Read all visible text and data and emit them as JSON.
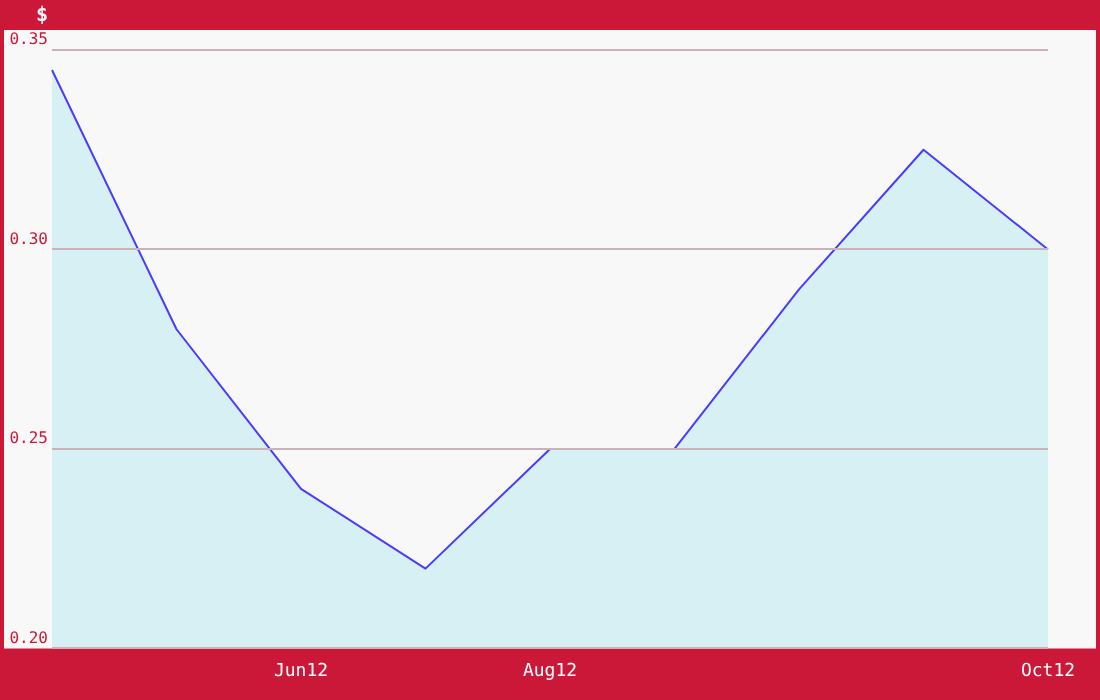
{
  "chart_data": {
    "type": "area",
    "ylabel": "$",
    "categories": [
      null,
      null,
      "Jun12",
      null,
      "Aug12",
      null,
      null,
      null,
      "Oct12"
    ],
    "series": [
      {
        "color": "#4a3cff",
        "values": [
          0.345,
          0.28,
          0.24,
          0.22,
          0.25,
          0.25,
          0.29,
          0.325,
          0.3
        ]
      }
    ],
    "ylim": [
      0.2,
      0.35
    ],
    "yticks": [
      {
        "value": 0.2,
        "label": "0.20"
      },
      {
        "value": 0.25,
        "label": "0.25"
      },
      {
        "value": 0.3,
        "label": "0.30"
      },
      {
        "value": 0.35,
        "label": "0.35"
      }
    ],
    "grid": "y",
    "legend": false
  }
}
